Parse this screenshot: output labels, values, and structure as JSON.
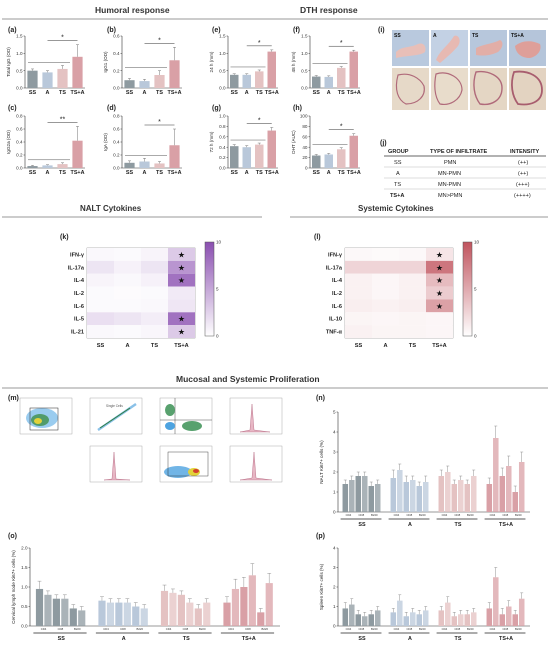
{
  "headers": {
    "humoral": "Humoral response",
    "dth": "DTH response",
    "nalt_cytokines": "NALT Cytokines",
    "systemic_cytokines": "Systemic Cytokines",
    "proliferation": "Mucosal and Systemic Proliferation"
  },
  "panel_labels": {
    "a": "(a)",
    "b": "(b)",
    "c": "(c)",
    "d": "(d)",
    "e": "(e)",
    "f": "(f)",
    "g": "(g)",
    "h": "(h)",
    "i": "(i)",
    "j": "(j)",
    "k": "(k)",
    "l": "(l)",
    "m": "(m)",
    "n": "(n)",
    "o": "(o)",
    "p": "(p)"
  },
  "colors": {
    "SS": "#8e9aa0",
    "A": "#b9c8da",
    "TS": "#e4c2c2",
    "TSA": "#d9a0a6",
    "heat_purple": "#8a4fb0",
    "heat_pink": "#c0545e"
  },
  "chart_data": [
    {
      "id": "a",
      "type": "bar",
      "categories": [
        "SS",
        "A",
        "TS",
        "TS+A"
      ],
      "values": [
        0.5,
        0.45,
        0.55,
        0.9
      ],
      "errors": [
        0.05,
        0.05,
        0.1,
        0.35
      ],
      "ylabel": "Total IgG (OD)",
      "ylim": [
        0,
        1.5
      ],
      "yticks": [
        "0.0",
        "0.5",
        "1.0",
        "1.5"
      ],
      "significance": "*"
    },
    {
      "id": "b",
      "type": "bar",
      "categories": [
        "SS",
        "A",
        "TS",
        "TS+A"
      ],
      "values": [
        0.09,
        0.08,
        0.15,
        0.32
      ],
      "errors": [
        0.02,
        0.02,
        0.05,
        0.15
      ],
      "ylabel": "IgG1 (OD)",
      "ylim": [
        0,
        0.6
      ],
      "yticks": [
        "0.0",
        "0.2",
        "0.4",
        "0.6"
      ],
      "significance": "*"
    },
    {
      "id": "c",
      "type": "bar",
      "categories": [
        "SS",
        "A",
        "TS",
        "TS+A"
      ],
      "values": [
        0.03,
        0.04,
        0.06,
        0.42
      ],
      "errors": [
        0.01,
        0.01,
        0.02,
        0.22
      ],
      "ylabel": "IgG2a (OD)",
      "ylim": [
        0,
        0.8
      ],
      "yticks": [
        "0.0",
        "0.2",
        "0.4",
        "0.6",
        "0.8"
      ],
      "significance": "**"
    },
    {
      "id": "d",
      "type": "bar",
      "categories": [
        "SS",
        "A",
        "TS",
        "TS+A"
      ],
      "values": [
        0.08,
        0.1,
        0.07,
        0.35
      ],
      "errors": [
        0.03,
        0.05,
        0.03,
        0.25
      ],
      "ylabel": "IgA (OD)",
      "ylim": [
        0,
        0.8
      ],
      "yticks": [
        "0.0",
        "0.2",
        "0.4",
        "0.6",
        "0.8"
      ],
      "significance": "*"
    },
    {
      "id": "e",
      "type": "bar",
      "categories": [
        "SS",
        "A",
        "TS",
        "TS+A"
      ],
      "values": [
        0.38,
        0.38,
        0.48,
        1.05
      ],
      "errors": [
        0.03,
        0.03,
        0.04,
        0.05
      ],
      "ylabel": "24 h (mm)",
      "ylim": [
        0,
        1.5
      ],
      "yticks": [
        "0.0",
        "0.5",
        "1.0",
        "1.5"
      ],
      "significance": "*"
    },
    {
      "id": "f",
      "type": "bar",
      "categories": [
        "SS",
        "A",
        "TS",
        "TS+A"
      ],
      "values": [
        0.33,
        0.32,
        0.58,
        1.05
      ],
      "errors": [
        0.03,
        0.03,
        0.04,
        0.04
      ],
      "ylabel": "48 h (mm)",
      "ylim": [
        0,
        1.5
      ],
      "yticks": [
        "0.0",
        "0.5",
        "1.0",
        "1.5"
      ],
      "significance": "*"
    },
    {
      "id": "g",
      "type": "bar",
      "categories": [
        "SS",
        "A",
        "TS",
        "TS+A"
      ],
      "values": [
        0.42,
        0.4,
        0.45,
        0.72
      ],
      "errors": [
        0.03,
        0.03,
        0.03,
        0.06
      ],
      "ylabel": "72 h (mm)",
      "ylim": [
        0,
        1.0
      ],
      "yticks": [
        "0.0",
        "0.2",
        "0.4",
        "0.6",
        "0.8",
        "1.0"
      ],
      "significance": "*"
    },
    {
      "id": "h",
      "type": "bar",
      "categories": [
        "SS",
        "A",
        "TS",
        "TS+A"
      ],
      "values": [
        24,
        26,
        36,
        62
      ],
      "errors": [
        2,
        2,
        3,
        4
      ],
      "ylabel": "DHT (AUC)",
      "ylim": [
        0,
        100
      ],
      "yticks": [
        "0",
        "20",
        "40",
        "60",
        "80",
        "100"
      ],
      "significance": "*"
    },
    {
      "id": "k",
      "type": "heatmap",
      "rows": [
        "IFN-γ",
        "IL-17a",
        "IL-4",
        "IL-2",
        "IL-6",
        "IL-5",
        "IL-21"
      ],
      "columns": [
        "SS",
        "A",
        "TS",
        "TS+A"
      ],
      "values": [
        [
          0.4,
          0.3,
          0.6,
          3.0
        ],
        [
          1.5,
          0.8,
          1.5,
          6.0
        ],
        [
          0.6,
          0.4,
          0.8,
          8.0
        ],
        [
          0.3,
          0.2,
          0.3,
          1.2
        ],
        [
          0.3,
          0.3,
          0.4,
          1.4
        ],
        [
          1.8,
          1.5,
          1.0,
          8.0
        ],
        [
          0.4,
          0.3,
          0.5,
          3.0
        ]
      ],
      "stars": [
        [
          0,
          3
        ],
        [
          1,
          3
        ],
        [
          2,
          3
        ],
        [
          5,
          3
        ],
        [
          6,
          3
        ]
      ],
      "scale": [
        0,
        10
      ],
      "scale_ticks": [
        "0",
        "5",
        "10"
      ]
    },
    {
      "id": "l",
      "type": "heatmap",
      "rows": [
        "IFN-γ",
        "IL-17a",
        "IL-4",
        "IL-2",
        "IL-6",
        "IL-10",
        "TNF-α"
      ],
      "columns": [
        "SS",
        "A",
        "TS",
        "TS+A"
      ],
      "values": [
        [
          0.4,
          0.3,
          0.4,
          1.5
        ],
        [
          2.5,
          2.5,
          2.5,
          8.0
        ],
        [
          0.8,
          0.5,
          0.8,
          4.0
        ],
        [
          0.8,
          0.5,
          0.8,
          3.0
        ],
        [
          1.0,
          0.8,
          1.0,
          5.5
        ],
        [
          0.6,
          0.5,
          0.6,
          0.5
        ],
        [
          0.8,
          0.6,
          0.6,
          0.5
        ]
      ],
      "stars": [
        [
          0,
          3
        ],
        [
          1,
          3
        ],
        [
          2,
          3
        ],
        [
          3,
          3
        ],
        [
          4,
          3
        ]
      ],
      "scale": [
        0,
        10
      ],
      "scale_ticks": [
        "0",
        "5",
        "10"
      ]
    },
    {
      "id": "n",
      "type": "bar",
      "groups": [
        "SS",
        "A",
        "TS",
        "TS+A"
      ],
      "subcategories": [
        "CD4",
        "CD8",
        "B220"
      ],
      "values": [
        [
          1.4,
          1.6,
          1.8,
          1.8,
          1.3,
          1.4
        ],
        [
          1.7,
          2.1,
          1.5,
          1.6,
          1.3,
          1.5
        ],
        [
          1.8,
          2.0,
          1.4,
          1.6,
          1.4,
          1.8
        ],
        [
          1.4,
          3.7,
          1.8,
          2.3,
          1.0,
          2.5
        ]
      ],
      "errors": [
        [
          0.2,
          0.2,
          0.2,
          0.2,
          0.2,
          0.2
        ],
        [
          0.4,
          0.3,
          0.3,
          0.2,
          0.2,
          0.3
        ],
        [
          0.3,
          0.3,
          0.2,
          0.2,
          0.2,
          0.3
        ],
        [
          0.3,
          0.6,
          0.4,
          0.5,
          0.3,
          0.5
        ]
      ],
      "ylabel": "NALT Ki67+ cells (%)",
      "ylim": [
        0,
        5
      ],
      "yticks": [
        "0",
        "1",
        "2",
        "3",
        "4",
        "5"
      ]
    },
    {
      "id": "o",
      "type": "bar",
      "groups": [
        "SS",
        "A",
        "TS",
        "TS+A"
      ],
      "subcategories": [
        "CD4",
        "CD8",
        "B220"
      ],
      "values": [
        [
          0.95,
          0.8,
          0.7,
          0.7,
          0.45,
          0.4
        ],
        [
          0.65,
          0.6,
          0.6,
          0.6,
          0.5,
          0.45
        ],
        [
          0.9,
          0.85,
          0.8,
          0.6,
          0.45,
          0.6
        ],
        [
          0.6,
          0.95,
          1.0,
          1.3,
          0.35,
          1.1
        ]
      ],
      "errors": [
        [
          0.2,
          0.1,
          0.1,
          0.1,
          0.1,
          0.1
        ],
        [
          0.1,
          0.1,
          0.1,
          0.1,
          0.1,
          0.1
        ],
        [
          0.15,
          0.1,
          0.1,
          0.1,
          0.1,
          0.1
        ],
        [
          0.15,
          0.25,
          0.25,
          0.3,
          0.1,
          0.25
        ]
      ],
      "ylabel": "Cervical lymph node Ki67+ cells (%)",
      "ylim": [
        0,
        2.0
      ],
      "yticks": [
        "0.0",
        "0.5",
        "1.0",
        "1.5",
        "2.0"
      ]
    },
    {
      "id": "p",
      "type": "bar",
      "groups": [
        "SS",
        "A",
        "TS",
        "TS+A"
      ],
      "subcategories": [
        "CD4",
        "CD8",
        "B220"
      ],
      "values": [
        [
          0.9,
          1.1,
          0.6,
          0.5,
          0.6,
          0.8
        ],
        [
          0.7,
          1.3,
          0.5,
          0.7,
          0.6,
          0.8
        ],
        [
          0.8,
          1.2,
          0.5,
          0.6,
          0.6,
          0.7
        ],
        [
          0.9,
          2.5,
          0.6,
          1.0,
          0.6,
          1.4
        ]
      ],
      "errors": [
        [
          0.3,
          0.3,
          0.2,
          0.2,
          0.2,
          0.2
        ],
        [
          0.2,
          0.3,
          0.2,
          0.2,
          0.2,
          0.2
        ],
        [
          0.2,
          0.3,
          0.2,
          0.2,
          0.2,
          0.2
        ],
        [
          0.3,
          0.5,
          0.3,
          0.3,
          0.2,
          0.3
        ]
      ],
      "ylabel": "Spleen Ki67+ cells (%)",
      "ylim": [
        0,
        4
      ],
      "yticks": [
        "0",
        "1",
        "2",
        "3",
        "4"
      ]
    }
  ],
  "photo_labels": [
    "SS",
    "A",
    "TS",
    "TS+A"
  ],
  "infiltrate_table": {
    "headers": [
      "GROUP",
      "TYPE OF INFILTRATE",
      "INTENSITY"
    ],
    "rows": [
      [
        "SS",
        "PMN",
        "(++)"
      ],
      [
        "A",
        "MN-PMN",
        "(++)"
      ],
      [
        "TS",
        "MN-PMN",
        "(+++)"
      ],
      [
        "TS+A",
        "MN>PMN",
        "(++++)"
      ]
    ]
  }
}
